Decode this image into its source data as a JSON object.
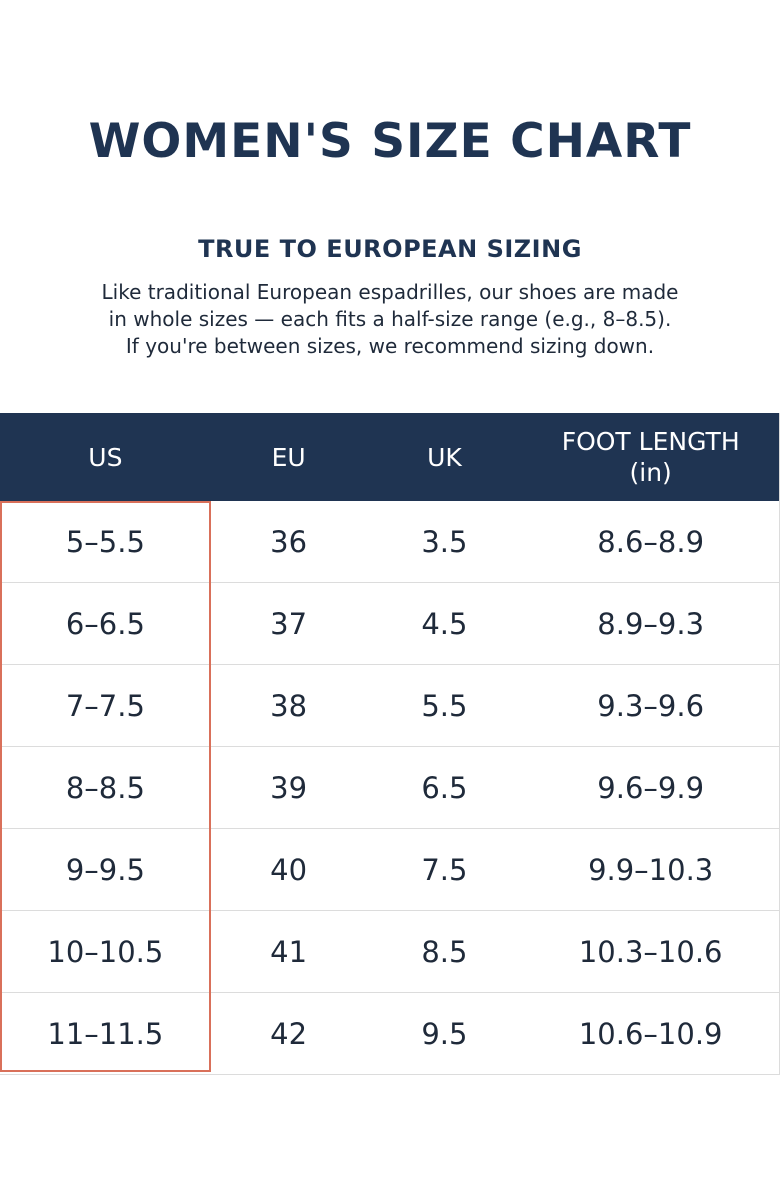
{
  "title": "WOMEN'S SIZE CHART",
  "subtitle": "TRUE TO EUROPEAN SIZING",
  "description": [
    "Like traditional European espadrilles, our shoes are made",
    "in whole sizes — each fits a half-size range (e.g., 8–8.5).",
    "If you're between sizes, we recommend sizing down."
  ],
  "table": {
    "headers": {
      "us": "US",
      "eu": "EU",
      "uk": "UK",
      "foot_length": [
        "FOOT LENGTH",
        "(in)"
      ]
    },
    "rows": [
      {
        "us": "5–5.5",
        "eu": "36",
        "uk": "3.5",
        "foot_length": "8.6–8.9"
      },
      {
        "us": "6–6.5",
        "eu": "37",
        "uk": "4.5",
        "foot_length": "8.9–9.3"
      },
      {
        "us": "7–7.5",
        "eu": "38",
        "uk": "5.5",
        "foot_length": "9.3–9.6"
      },
      {
        "us": "8–8.5",
        "eu": "39",
        "uk": "6.5",
        "foot_length": "9.6–9.9"
      },
      {
        "us": "9–9.5",
        "eu": "40",
        "uk": "7.5",
        "foot_length": "9.9–10.3"
      },
      {
        "us": "10–10.5",
        "eu": "41",
        "uk": "8.5",
        "foot_length": "10.3–10.6"
      },
      {
        "us": "11–11.5",
        "eu": "42",
        "uk": "9.5",
        "foot_length": "10.6–10.9"
      }
    ]
  },
  "colors": {
    "header_bg": "#1f3452",
    "highlight_border": "#d9705a",
    "text": "#1f2a3a"
  }
}
